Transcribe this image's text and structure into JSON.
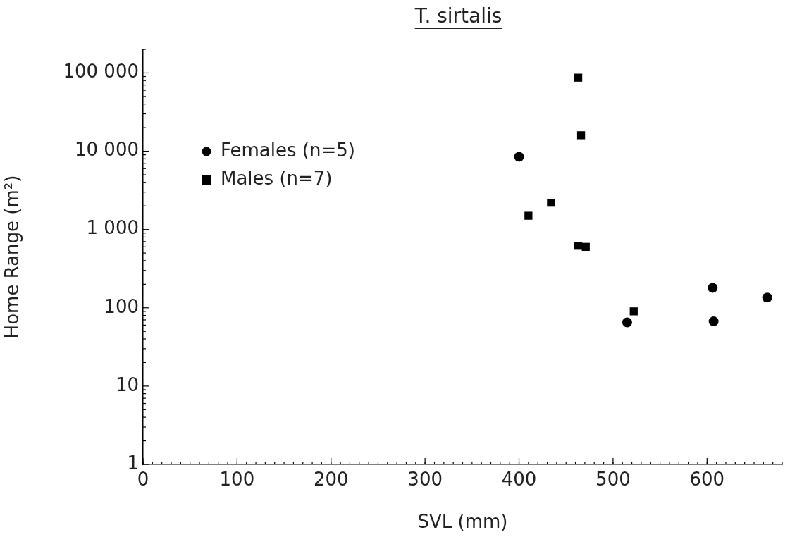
{
  "chart_data": {
    "type": "scatter",
    "title": "T. sirtalis",
    "xlabel": "SVL (mm)",
    "ylabel": "Home Range (m²)",
    "log": "y",
    "grid": false,
    "legend": "top left",
    "xlim": [
      0,
      680
    ],
    "xticks": [
      0,
      100,
      200,
      300,
      400,
      500,
      600
    ],
    "ylim": [
      1,
      200000
    ],
    "yticks": [
      1,
      10,
      100,
      {
        "value": 1000,
        "label": "1 000"
      },
      {
        "value": 10000,
        "label": "10 000"
      },
      {
        "value": 100000,
        "label": "100 000"
      }
    ],
    "series": [
      {
        "name": "Females (n=5)",
        "color": "#000000",
        "marker": "circle",
        "x": [
          400,
          515,
          606,
          607,
          664
        ],
        "values": [
          8500,
          65,
          180,
          67,
          135
        ]
      },
      {
        "name": "Males (n=7)",
        "color": "#000000",
        "marker": "square",
        "x": [
          410,
          434,
          463,
          466,
          463,
          471,
          522
        ],
        "values": [
          1500,
          2200,
          87000,
          16000,
          620,
          600,
          90
        ]
      }
    ]
  }
}
